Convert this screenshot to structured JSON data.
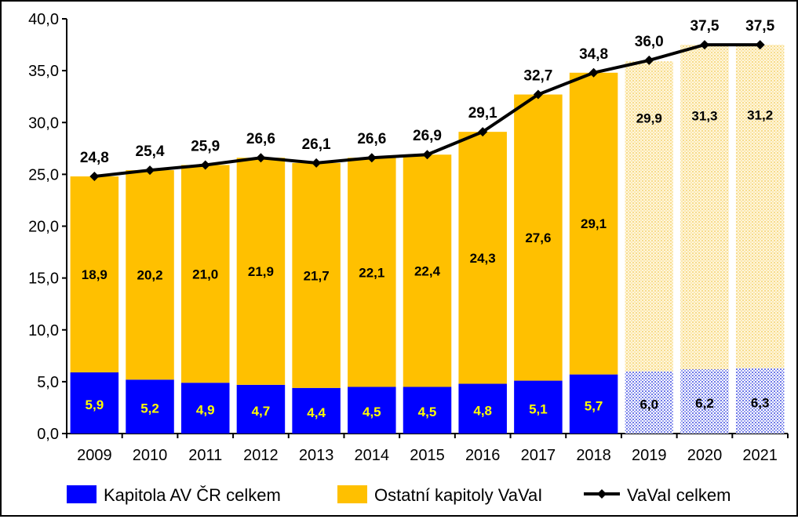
{
  "chart_data": {
    "type": "bar",
    "stacked": true,
    "categories": [
      "2009",
      "2010",
      "2011",
      "2012",
      "2013",
      "2014",
      "2015",
      "2016",
      "2017",
      "2018",
      "2019",
      "2020",
      "2021"
    ],
    "series": [
      {
        "name": "Kapitola AV ČR celkem",
        "color": "#0000ff",
        "values": [
          5.9,
          5.2,
          4.9,
          4.7,
          4.4,
          4.5,
          4.5,
          4.8,
          5.1,
          5.7,
          6.0,
          6.2,
          6.3
        ],
        "labels": [
          "5,9",
          "5,2",
          "4,9",
          "4,7",
          "4,4",
          "4,5",
          "4,5",
          "4,8",
          "5,1",
          "5,7",
          "6,0",
          "6,2",
          "6,3"
        ]
      },
      {
        "name": "Ostatní kapitoly VaVaI",
        "color": "#ffc000",
        "values": [
          18.9,
          20.2,
          21.0,
          21.9,
          21.7,
          22.1,
          22.4,
          24.3,
          27.6,
          29.1,
          29.9,
          31.3,
          31.2
        ],
        "labels": [
          "18,9",
          "20,2",
          "21,0",
          "21,9",
          "21,7",
          "22,1",
          "22,4",
          "24,3",
          "27,6",
          "29,1",
          "29,9",
          "31,3",
          "31,2"
        ]
      }
    ],
    "line": {
      "name": "VaVaI celkem",
      "color": "#000000",
      "values": [
        24.8,
        25.4,
        25.9,
        26.6,
        26.1,
        26.6,
        26.9,
        29.1,
        32.7,
        34.8,
        36.0,
        37.5,
        37.5
      ],
      "labels": [
        "24,8",
        "25,4",
        "25,9",
        "26,6",
        "26,1",
        "26,6",
        "26,9",
        "29,1",
        "32,7",
        "34,8",
        "36,0",
        "37,5",
        "37,5"
      ]
    },
    "projected_from_index": 10,
    "yticks": [
      "0,0",
      "5,0",
      "10,0",
      "15,0",
      "20,0",
      "25,0",
      "30,0",
      "35,0",
      "40,0"
    ],
    "ylim": [
      0,
      40
    ],
    "legend_position": "bottom",
    "grid": false
  }
}
